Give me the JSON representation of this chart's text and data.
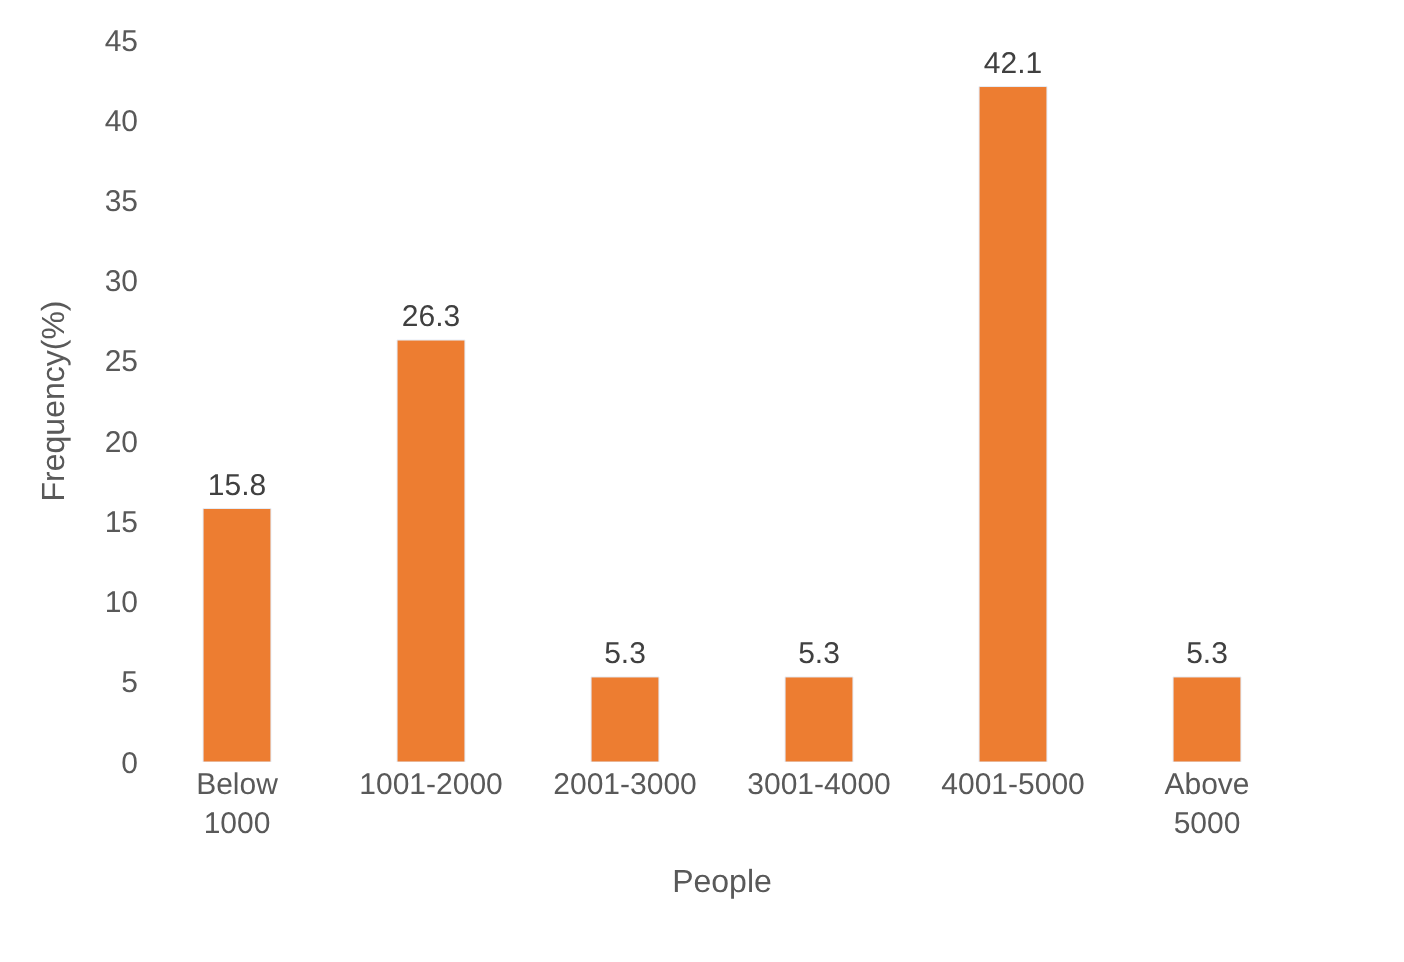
{
  "chart_data": {
    "type": "bar",
    "xlabel": "People",
    "ylabel": "Frequency(%)",
    "categories": [
      "Below\n1000",
      "1001-2000",
      "2001-3000",
      "3001-4000",
      "4001-5000",
      "Above\n5000"
    ],
    "values": [
      15.8,
      26.3,
      5.3,
      5.3,
      42.1,
      5.3
    ],
    "color": "#ed7d31",
    "ylim": [
      0,
      45
    ],
    "yticks": [
      0,
      5,
      10,
      15,
      20,
      25,
      30,
      35,
      40,
      45
    ],
    "data_labels": true
  }
}
